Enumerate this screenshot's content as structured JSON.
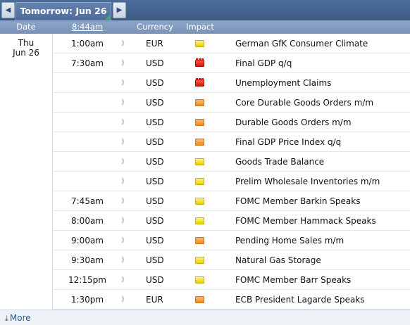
{
  "nav": {
    "prev_icon": "◀",
    "next_icon": "▶",
    "day_label": "Tomorrow: Jun 26"
  },
  "columns": {
    "date": "Date",
    "time": "8:44am",
    "currency": "Currency",
    "impact": "Impact"
  },
  "date_cell": {
    "weekday": "Thu",
    "date": "Jun 26"
  },
  "events": [
    {
      "time": "1:00am",
      "currency": "EUR",
      "impact": "yellow",
      "event": "German GfK Consumer Climate"
    },
    {
      "time": "7:30am",
      "currency": "USD",
      "impact": "red",
      "event": "Final GDP q/q"
    },
    {
      "time": "",
      "currency": "USD",
      "impact": "red",
      "event": "Unemployment Claims"
    },
    {
      "time": "",
      "currency": "USD",
      "impact": "orange",
      "event": "Core Durable Goods Orders m/m"
    },
    {
      "time": "",
      "currency": "USD",
      "impact": "orange",
      "event": "Durable Goods Orders m/m"
    },
    {
      "time": "",
      "currency": "USD",
      "impact": "orange",
      "event": "Final GDP Price Index q/q"
    },
    {
      "time": "",
      "currency": "USD",
      "impact": "yellow",
      "event": "Goods Trade Balance"
    },
    {
      "time": "",
      "currency": "USD",
      "impact": "yellow",
      "event": "Prelim Wholesale Inventories m/m"
    },
    {
      "time": "7:45am",
      "currency": "USD",
      "impact": "yellow",
      "event": "FOMC Member Barkin Speaks"
    },
    {
      "time": "8:00am",
      "currency": "USD",
      "impact": "yellow",
      "event": "FOMC Member Hammack Speaks"
    },
    {
      "time": "9:00am",
      "currency": "USD",
      "impact": "orange",
      "event": "Pending Home Sales m/m"
    },
    {
      "time": "9:30am",
      "currency": "USD",
      "impact": "yellow",
      "event": "Natural Gas Storage"
    },
    {
      "time": "12:15pm",
      "currency": "USD",
      "impact": "yellow",
      "event": "FOMC Member Barr Speaks"
    },
    {
      "time": "1:30pm",
      "currency": "EUR",
      "impact": "orange",
      "event": "ECB President Lagarde Speaks"
    }
  ],
  "alarm_icon": "⟫",
  "footer": {
    "more_arrow": "⤓",
    "more_label": "More"
  }
}
